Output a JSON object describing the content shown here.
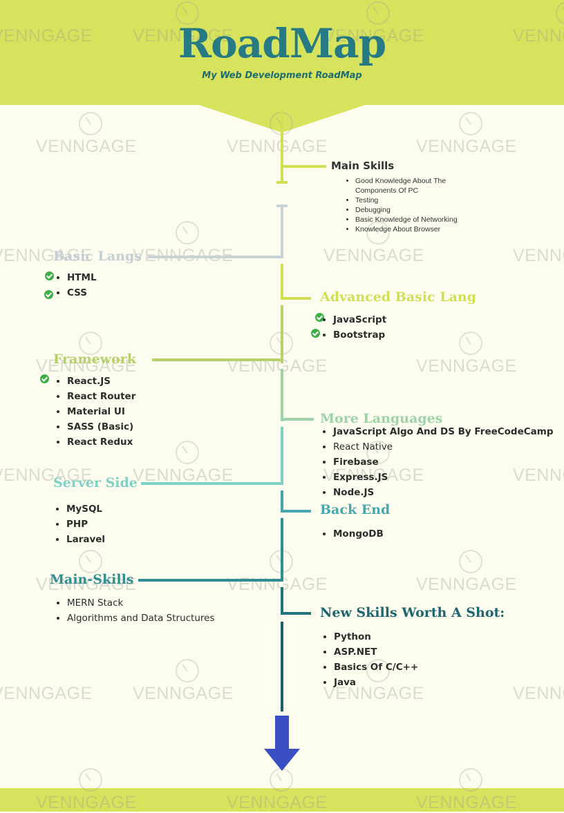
{
  "header": {
    "title": "RoadMap",
    "subtitle": "My Web Development RoadMap"
  },
  "watermark": "VENNGAGE",
  "colors": {
    "header_bg": "#d7e35c",
    "page_bg": "#fcfdee",
    "title": "#267a83",
    "check": "#3fae49",
    "arrow": "#3a4fc4"
  },
  "main_skills": {
    "title": "Main Skills",
    "items": [
      "Good Knowledge About The Components Of PC",
      "Testing",
      "Debugging",
      "Basic Knowledge of Networking",
      "Knowledge About Browser"
    ]
  },
  "basic_langs": {
    "title": "Basic Langs",
    "items": [
      "HTML",
      "CSS"
    ]
  },
  "advanced_basic_lang": {
    "title": "Advanced Basic Lang",
    "items": [
      "JavaScript",
      "Bootstrap"
    ]
  },
  "framework": {
    "title": "Framework",
    "items": [
      "React.JS",
      "React Router",
      "Material UI",
      "SASS (Basic)",
      "React Redux"
    ]
  },
  "more_languages": {
    "title": "More Languages",
    "items": [
      "JavaScript Algo And DS By FreeCodeCamp",
      "React Native",
      "Firebase",
      "Express.JS",
      "Node.JS"
    ]
  },
  "server_side": {
    "title": "Server Side",
    "items": [
      "MySQL",
      "PHP",
      "Laravel"
    ]
  },
  "back_end": {
    "title": "Back End",
    "items": [
      "MongoDB"
    ]
  },
  "main_skills_2": {
    "title": "Main-Skills",
    "items": [
      "MERN Stack",
      "Algorithms and Data Structures"
    ]
  },
  "new_skills": {
    "title": "New Skills Worth A Shot:",
    "items": [
      "Python",
      "ASP.NET",
      "Basics Of C/C++",
      "Java"
    ]
  }
}
